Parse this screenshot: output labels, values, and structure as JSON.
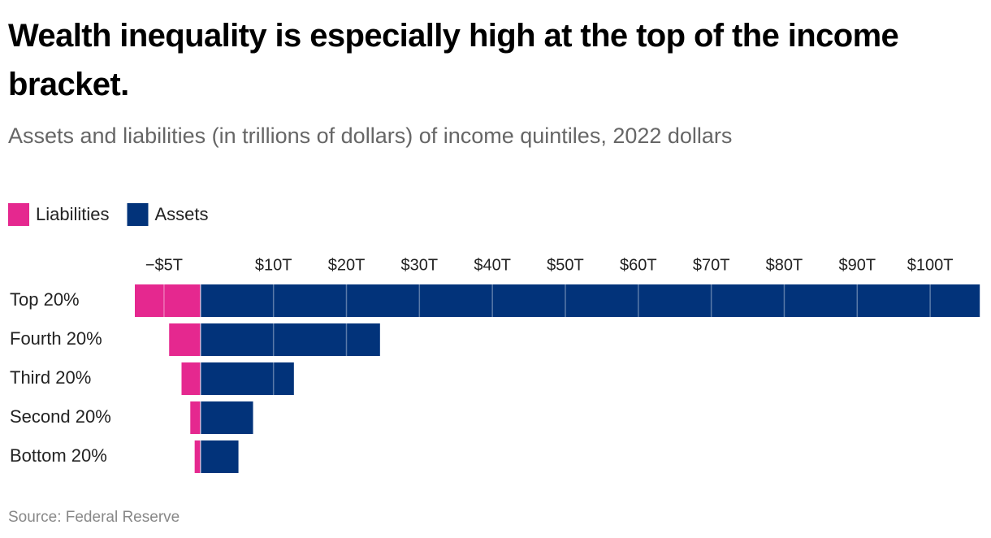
{
  "chart_data": {
    "type": "diverging_bar",
    "title": "Wealth inequality is especially high at the top of the income bracket.",
    "subtitle": "Assets and liabilities (in trillions of dollars) of income quintiles, 2022 dollars",
    "source": "Source: Federal Reserve",
    "categories": [
      "Top 20%",
      "Fourth 20%",
      "Third 20%",
      "Second 20%",
      "Bottom 20%"
    ],
    "series": [
      {
        "name": "Liabilities",
        "color": "#e5288f",
        "values": [
          -9,
          -4.3,
          -2.6,
          -1.4,
          -0.8
        ]
      },
      {
        "name": "Assets",
        "color": "#02337a",
        "values": [
          106.8,
          24.6,
          12.8,
          7.2,
          5.2
        ]
      }
    ],
    "xlim": [
      -9,
      107
    ],
    "xticks": [
      {
        "value": -5,
        "label": "−$5T"
      },
      {
        "value": 10,
        "label": "$10T"
      },
      {
        "value": 20,
        "label": "$20T"
      },
      {
        "value": 30,
        "label": "$30T"
      },
      {
        "value": 40,
        "label": "$40T"
      },
      {
        "value": 50,
        "label": "$50T"
      },
      {
        "value": 60,
        "label": "$60T"
      },
      {
        "value": 70,
        "label": "$70T"
      },
      {
        "value": 80,
        "label": "$80T"
      },
      {
        "value": 90,
        "label": "$90T"
      },
      {
        "value": 100,
        "label": "$100T"
      }
    ],
    "grid": true,
    "legend": "top-left"
  }
}
